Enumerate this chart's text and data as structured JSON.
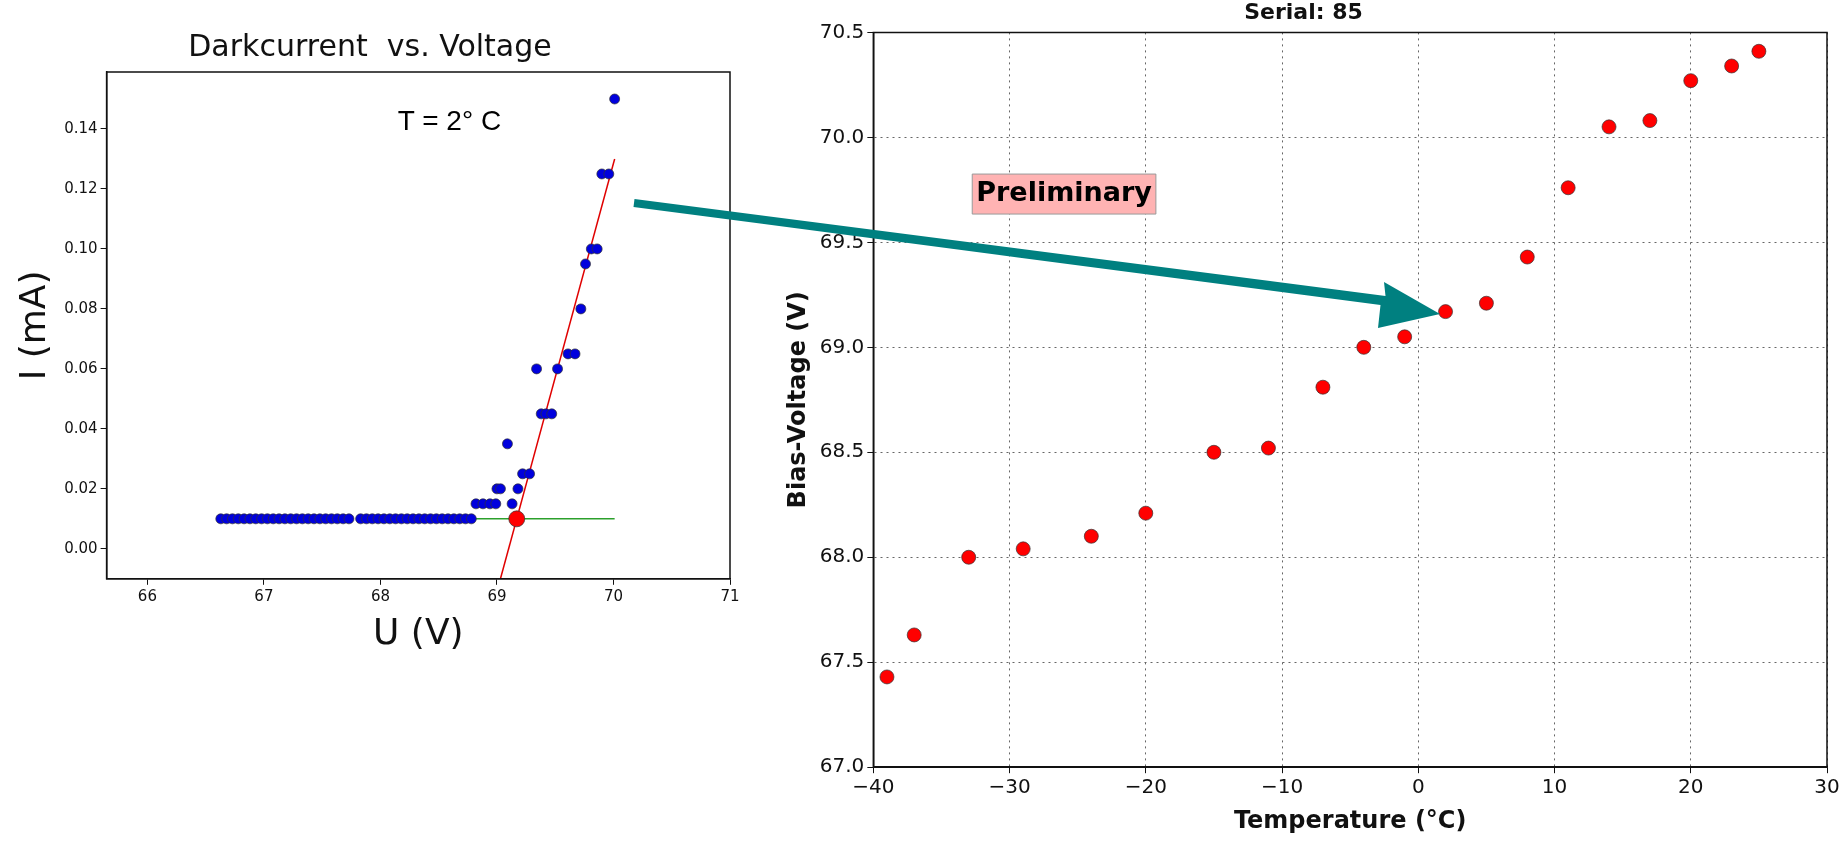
{
  "chart_data": [
    {
      "type": "scatter",
      "title": "Darkcurrent  vs. Voltage",
      "xlabel": "U (V)",
      "ylabel": "I (mA)",
      "annotations": [
        "T = 2° C"
      ],
      "xlim": [
        65.65,
        71
      ],
      "xticks": [
        66,
        67,
        68,
        69,
        70,
        71
      ],
      "ylim": [
        -0.01,
        0.159
      ],
      "yticks": [
        {
          "value": 0,
          "label": "0.00"
        },
        0.02,
        0.04,
        0.06,
        0.08,
        {
          "value": 0.1,
          "label": "0.10"
        },
        0.12,
        0.14
      ],
      "grid": false,
      "legend": false,
      "marker": "circle",
      "series": [
        {
          "type": "scatter",
          "color": "#0000dd",
          "x": [
            66.63,
            66.68,
            66.73,
            66.78,
            66.83,
            66.88,
            66.93,
            66.98,
            67.03,
            67.08,
            67.13,
            67.18,
            67.23,
            67.28,
            67.33,
            67.38,
            67.43,
            67.48,
            67.53,
            67.58,
            67.63,
            67.68,
            67.73,
            67.83,
            67.88,
            67.93,
            67.98,
            68.03,
            68.08,
            68.13,
            68.18,
            68.23,
            68.28,
            68.33,
            68.38,
            68.43,
            68.48,
            68.53,
            68.58,
            68.63,
            68.68,
            68.73,
            68.78,
            68.82,
            68.88,
            68.94,
            68.99,
            69.0,
            69.03,
            69.09,
            69.13,
            69.18,
            69.22,
            69.28,
            69.34,
            69.38,
            69.42,
            69.47,
            69.52,
            69.61,
            69.67,
            69.72,
            69.76,
            69.81,
            69.86,
            69.9,
            69.96,
            70.01
          ],
          "values": [
            0.01,
            0.01,
            0.01,
            0.01,
            0.01,
            0.01,
            0.01,
            0.01,
            0.01,
            0.01,
            0.01,
            0.01,
            0.01,
            0.01,
            0.01,
            0.01,
            0.01,
            0.01,
            0.01,
            0.01,
            0.01,
            0.01,
            0.01,
            0.01,
            0.01,
            0.01,
            0.01,
            0.01,
            0.01,
            0.01,
            0.01,
            0.01,
            0.01,
            0.01,
            0.01,
            0.01,
            0.01,
            0.01,
            0.01,
            0.01,
            0.01,
            0.01,
            0.01,
            0.015,
            0.015,
            0.015,
            0.015,
            0.02,
            0.02,
            0.035,
            0.015,
            0.02,
            0.025,
            0.025,
            0.06,
            0.045,
            0.045,
            0.045,
            0.06,
            0.065,
            0.065,
            0.08,
            0.095,
            0.1,
            0.1,
            0.125,
            0.125,
            0.15
          ]
        },
        {
          "type": "line",
          "color": "#2ca02c",
          "marker": "none",
          "x": [
            68.8,
            70.01
          ],
          "values": [
            0.01,
            0.01
          ]
        },
        {
          "type": "line",
          "color": "#e00000",
          "marker": "none",
          "x": [
            69.03,
            70.01
          ],
          "values": [
            -0.01,
            0.13
          ]
        },
        {
          "type": "scatter",
          "color": "#ff0000",
          "x": [
            69.17
          ],
          "values": [
            0.01
          ]
        }
      ]
    },
    {
      "type": "scatter",
      "title": "Serial: 85",
      "xlabel": "Temperature (°C)",
      "ylabel": "Bias-Voltage (V)",
      "annotations": [
        "Preliminary"
      ],
      "xlim": [
        -40,
        30
      ],
      "xticks": [
        {
          "value": -40,
          "label": "−40"
        },
        {
          "value": -30,
          "label": "−30"
        },
        {
          "value": -20,
          "label": "−20"
        },
        {
          "value": -10,
          "label": "−10"
        },
        0,
        10,
        20,
        30
      ],
      "ylim": [
        67,
        70.5
      ],
      "yticks": [
        {
          "value": 67,
          "label": "67.0"
        },
        67.5,
        {
          "value": 68,
          "label": "68.0"
        },
        68.5,
        {
          "value": 69,
          "label": "69.0"
        },
        69.5,
        {
          "value": 70,
          "label": "70.0"
        },
        70.5
      ],
      "grid": true,
      "legend": false,
      "marker": "circle",
      "series": [
        {
          "type": "scatter",
          "color": "#ff0000",
          "x": [
            -39,
            -37,
            -33,
            -29,
            -24,
            -20,
            -15,
            -11,
            -7,
            -4,
            -1,
            2,
            5,
            8,
            11,
            14,
            17,
            20,
            23,
            25
          ],
          "values": [
            67.43,
            67.63,
            68.0,
            68.04,
            68.1,
            68.21,
            68.5,
            68.52,
            68.81,
            69.0,
            69.05,
            69.17,
            69.21,
            69.43,
            69.76,
            70.05,
            70.08,
            70.27,
            70.34,
            70.41
          ]
        }
      ]
    }
  ]
}
